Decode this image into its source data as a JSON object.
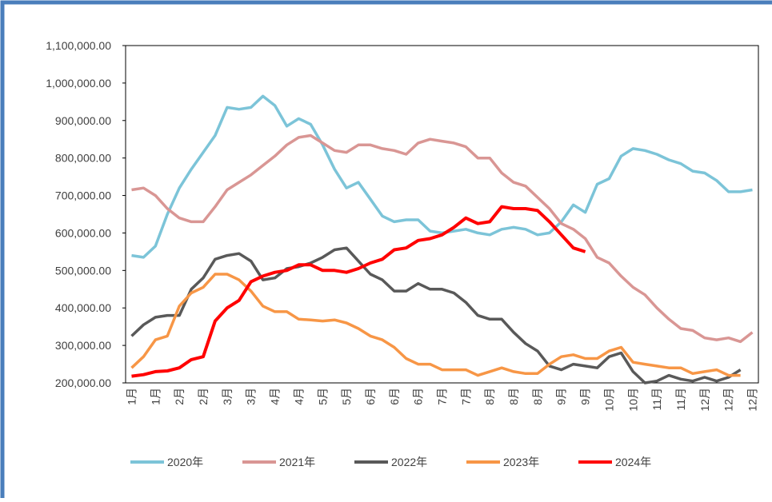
{
  "chart_data": {
    "type": "line",
    "categories": [
      "1月",
      null,
      "1月",
      null,
      "2月",
      null,
      "2月",
      null,
      "3月",
      null,
      "3月",
      null,
      "4月",
      null,
      "4月",
      null,
      "5月",
      null,
      "5月",
      null,
      "6月",
      null,
      "6月",
      null,
      "6月",
      null,
      "7月",
      null,
      "7月",
      null,
      "8月",
      null,
      "8月",
      null,
      "8月",
      null,
      "9月",
      null,
      "9月",
      null,
      "10月",
      null,
      "10月",
      null,
      "11月",
      null,
      "11月",
      null,
      "12月",
      null,
      "12月",
      null,
      "12月"
    ],
    "series": [
      {
        "name": "2020年",
        "color": "#7cc4d8",
        "values": [
          540000,
          535000,
          565000,
          650000,
          720000,
          770000,
          815000,
          860000,
          935000,
          930000,
          935000,
          965000,
          940000,
          885000,
          905000,
          890000,
          835000,
          770000,
          720000,
          735000,
          690000,
          645000,
          630000,
          635000,
          635000,
          605000,
          600000,
          605000,
          610000,
          600000,
          595000,
          610000,
          615000,
          610000,
          595000,
          600000,
          630000,
          675000,
          655000,
          730000,
          745000,
          805000,
          825000,
          820000,
          810000,
          795000,
          785000,
          765000,
          760000,
          740000,
          710000,
          710000,
          715000
        ]
      },
      {
        "name": "2021年",
        "color": "#d99694",
        "values": [
          715000,
          720000,
          700000,
          665000,
          640000,
          630000,
          630000,
          670000,
          715000,
          735000,
          755000,
          780000,
          805000,
          835000,
          855000,
          860000,
          840000,
          820000,
          815000,
          835000,
          835000,
          825000,
          820000,
          810000,
          840000,
          850000,
          845000,
          840000,
          830000,
          800000,
          800000,
          760000,
          735000,
          725000,
          695000,
          665000,
          625000,
          610000,
          585000,
          535000,
          520000,
          485000,
          455000,
          435000,
          400000,
          370000,
          345000,
          340000,
          320000,
          315000,
          320000,
          310000,
          335000
        ]
      },
      {
        "name": "2022年",
        "color": "#595959",
        "values": [
          325000,
          355000,
          375000,
          380000,
          380000,
          450000,
          480000,
          530000,
          540000,
          545000,
          525000,
          475000,
          480000,
          505000,
          510000,
          520000,
          535000,
          555000,
          560000,
          525000,
          490000,
          475000,
          445000,
          445000,
          465000,
          450000,
          450000,
          440000,
          415000,
          380000,
          370000,
          370000,
          335000,
          305000,
          285000,
          245000,
          235000,
          250000,
          245000,
          240000,
          270000,
          280000,
          230000,
          200000,
          205000,
          220000,
          210000,
          205000,
          215000,
          205000,
          215000,
          235000,
          null
        ]
      },
      {
        "name": "2023年",
        "color": "#f79646",
        "values": [
          240000,
          270000,
          315000,
          325000,
          405000,
          440000,
          455000,
          490000,
          490000,
          475000,
          445000,
          405000,
          390000,
          390000,
          370000,
          368000,
          365000,
          368000,
          360000,
          345000,
          325000,
          315000,
          295000,
          265000,
          250000,
          250000,
          235000,
          235000,
          235000,
          220000,
          230000,
          240000,
          230000,
          225000,
          225000,
          250000,
          270000,
          275000,
          265000,
          265000,
          285000,
          295000,
          255000,
          250000,
          245000,
          240000,
          240000,
          225000,
          230000,
          235000,
          220000,
          220000,
          null
        ]
      },
      {
        "name": "2024年",
        "color": "#ff0000",
        "values": [
          218000,
          222000,
          230000,
          232000,
          240000,
          262000,
          270000,
          365000,
          400000,
          420000,
          470000,
          485000,
          495000,
          500000,
          515000,
          515000,
          500000,
          500000,
          495000,
          505000,
          520000,
          530000,
          555000,
          560000,
          580000,
          585000,
          595000,
          615000,
          640000,
          625000,
          630000,
          670000,
          665000,
          665000,
          660000,
          630000,
          595000,
          560000,
          550000,
          null,
          null,
          null,
          null,
          null,
          null,
          null,
          null,
          null,
          null,
          null,
          null,
          null,
          null
        ]
      }
    ],
    "ylim": [
      200000,
      1100000
    ],
    "yticks": [
      {
        "value": 200000,
        "label": "200,000.00"
      },
      {
        "value": 300000,
        "label": "300,000.00"
      },
      {
        "value": 400000,
        "label": "400,000.00"
      },
      {
        "value": 500000,
        "label": "500,000.00"
      },
      {
        "value": 600000,
        "label": "600,000.00"
      },
      {
        "value": 700000,
        "label": "700,000.00"
      },
      {
        "value": 800000,
        "label": "800,000.00"
      },
      {
        "value": 900000,
        "label": "900,000.00"
      },
      {
        "value": 1000000,
        "label": "1,000,000.00"
      },
      {
        "value": 1100000,
        "label": "1,100,000.00"
      }
    ],
    "legend": "bottom"
  }
}
